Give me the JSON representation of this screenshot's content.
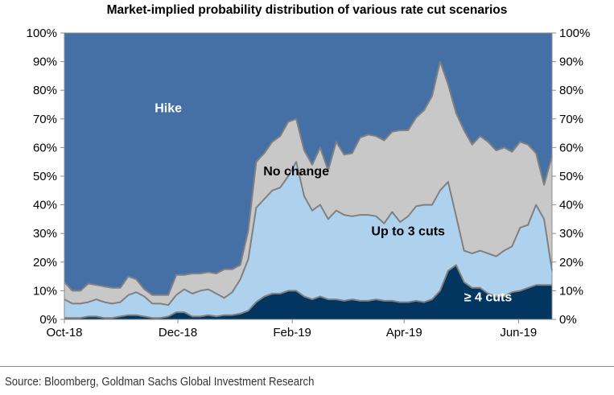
{
  "chart_data": {
    "type": "area",
    "stacked": true,
    "title": "Market-implied probability distribution of various rate cut scenarios",
    "xlabel": "",
    "ylabel": "",
    "ylim": [
      0,
      100
    ],
    "y_ticks": [
      "0%",
      "10%",
      "20%",
      "30%",
      "40%",
      "50%",
      "60%",
      "70%",
      "80%",
      "90%",
      "100%"
    ],
    "x_ticks": [
      {
        "label": "Oct-18",
        "pos": 0
      },
      {
        "label": "Dec-18",
        "pos": 14.2
      },
      {
        "label": "Feb-19",
        "pos": 28.5
      },
      {
        "label": "Apr-19",
        "pos": 42.5
      },
      {
        "label": "Jun-19",
        "pos": 56.8
      }
    ],
    "x_range": [
      0,
      61
    ],
    "grid": false,
    "legend": "none (in-chart labels)",
    "series": [
      {
        "name": "≥ 4 cuts",
        "color": "#023560",
        "label_color": "#ffffff",
        "label_at": [
          53,
          8
        ],
        "values": [
          0.5,
          0.5,
          0.5,
          1,
          1,
          0.5,
          0.5,
          1,
          1.5,
          1.5,
          1,
          0.5,
          0.5,
          1,
          2.5,
          2.5,
          1,
          1,
          1.5,
          1,
          1.5,
          1.5,
          2,
          3,
          6,
          8,
          9,
          9,
          10,
          10,
          8,
          7,
          8,
          7,
          7,
          6.5,
          7,
          6.5,
          6.5,
          7,
          6.5,
          6.5,
          6,
          6,
          6.5,
          6,
          7,
          10,
          17,
          19,
          13,
          11,
          11,
          9,
          8,
          8,
          9.5,
          10,
          11,
          12,
          12,
          12
        ]
      },
      {
        "name": "Up to 3 cuts",
        "color": "#AED2EE",
        "label_color": "#000000",
        "label_at": [
          43,
          31
        ],
        "values": [
          6.5,
          5,
          5,
          5,
          6,
          5.5,
          5,
          5,
          7,
          8,
          7,
          5,
          5,
          4,
          6,
          8,
          8,
          9,
          9,
          8,
          6,
          8,
          12,
          18,
          33,
          34,
          36,
          37,
          40,
          45,
          35,
          31,
          32,
          28,
          31,
          30,
          29,
          30,
          30,
          29,
          27,
          31,
          28,
          30,
          33,
          34,
          33,
          35,
          31,
          17,
          11,
          12,
          13,
          14,
          14,
          16,
          16,
          22,
          22,
          28,
          23,
          5
        ]
      },
      {
        "name": "No change",
        "color": "#C8C8C8",
        "label_color": "#000000",
        "label_at": [
          29,
          52
        ],
        "values": [
          6,
          4.5,
          4.5,
          6.5,
          5,
          5.5,
          5.5,
          5,
          6.5,
          4.5,
          2.5,
          3,
          3,
          3.5,
          7,
          5,
          7,
          6,
          6,
          7,
          10,
          8,
          5,
          10,
          16,
          16,
          17,
          18,
          19,
          15,
          16,
          16,
          20,
          17,
          24,
          21,
          22,
          27,
          28,
          28,
          29,
          28,
          32,
          30,
          31,
          33,
          38,
          45,
          34,
          36,
          42,
          38,
          40,
          39,
          37,
          36,
          33,
          30,
          28,
          18,
          12,
          40
        ]
      },
      {
        "name": "Hike",
        "color": "#4470A6",
        "label_color": "#ffffff",
        "label_at": [
          13,
          74
        ],
        "values": [
          87,
          90,
          90,
          87.5,
          88,
          88.5,
          89,
          89,
          85,
          86,
          89.5,
          91.5,
          91.5,
          91.5,
          84.5,
          84.5,
          84,
          84,
          83.5,
          84,
          82.5,
          82.5,
          81,
          69,
          45,
          42,
          38,
          36,
          31,
          30,
          41,
          46,
          40,
          48,
          38,
          42.5,
          42,
          36.5,
          35.5,
          36,
          37.5,
          34.5,
          34,
          34,
          29.5,
          27,
          22,
          10,
          18,
          28,
          34,
          39,
          36,
          38,
          41,
          40,
          41.5,
          38,
          39,
          42,
          53,
          43
        ]
      }
    ],
    "annotations": [
      "Hike",
      "No change",
      "Up to 3 cuts",
      "≥ 4 cuts"
    ]
  },
  "axes": {
    "left_ticks": [
      "0%",
      "10%",
      "20%",
      "30%",
      "40%",
      "50%",
      "60%",
      "70%",
      "80%",
      "90%",
      "100%"
    ],
    "right_ticks": [
      "0%",
      "10%",
      "20%",
      "30%",
      "40%",
      "50%",
      "60%",
      "70%",
      "80%",
      "90%",
      "100%"
    ]
  },
  "footer": {
    "source": "Source: Bloomberg, Goldman Sachs Global Investment Research"
  }
}
